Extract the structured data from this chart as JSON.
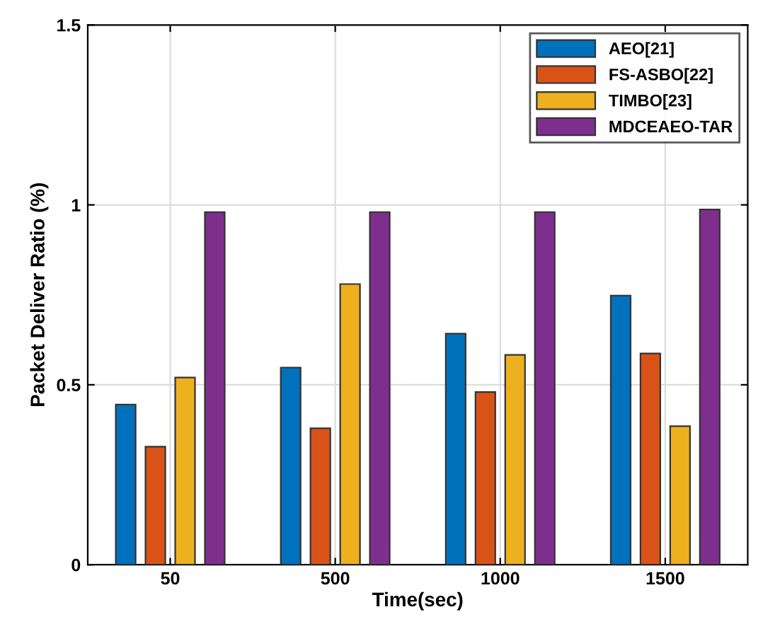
{
  "chart_data": {
    "type": "bar",
    "xlabel": "Time(sec)",
    "ylabel": "Packet Deliver Ratio (%)",
    "categories": [
      "50",
      "500",
      "1000",
      "1500"
    ],
    "series": [
      {
        "name": "AEO[21]",
        "color": "#0072bd",
        "values": [
          0.445,
          0.548,
          0.642,
          0.748
        ]
      },
      {
        "name": "FS-ASBO[22]",
        "color": "#d95319",
        "values": [
          0.328,
          0.379,
          0.48,
          0.587
        ]
      },
      {
        "name": "TIMBO[23]",
        "color": "#edb120",
        "values": [
          0.52,
          0.78,
          0.583,
          0.385
        ]
      },
      {
        "name": "MDCEAEO-TAR",
        "color": "#7e2f8e",
        "values": [
          0.98,
          0.98,
          0.98,
          0.987
        ]
      }
    ],
    "ylim": [
      0,
      1.5
    ],
    "yticks": [
      0,
      0.5,
      1,
      1.5
    ],
    "grid": true,
    "legend": "top right"
  }
}
